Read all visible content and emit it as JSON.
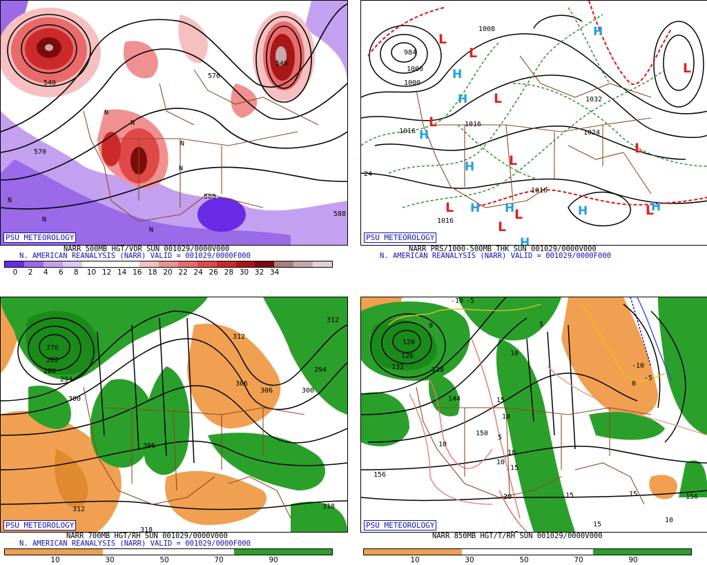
{
  "colors": {
    "vort_scale": [
      "#6a2be6",
      "#9a6ae8",
      "#c4a0f0",
      "#dcc8f8",
      "#ffffff",
      "#ffffff",
      "#ffffff",
      "#f6c0c0",
      "#f09090",
      "#e86a6a",
      "#e04848",
      "#cc2a2a",
      "#a81818",
      "#7a0c0c",
      "#a88080",
      "#c8a8a8",
      "#e6d0d0"
    ],
    "dry": "#f0a050",
    "moist": "#2aa02a",
    "border": "#8b4a20",
    "high": "#20a0e0",
    "low": "#e02020"
  },
  "panels": {
    "p1": {
      "psu": "PSU METEOROLOGY",
      "caption1": "NARR 500MB HGT/VOR SUN 001029/0000V000",
      "caption2": "N. AMERICAN REANALYSIS (NARR) VALID = 001029/0000F000",
      "colorbar_labels": [
        "0",
        "2",
        "4",
        "6",
        "8",
        "10",
        "12",
        "14",
        "16",
        "18",
        "20",
        "22",
        "24",
        "26",
        "28",
        "30",
        "32",
        "34"
      ],
      "contour_labels": [
        "540",
        "540",
        "576",
        "570",
        "588",
        "588",
        "N",
        "N",
        "N",
        "N",
        "N",
        "N",
        "N"
      ]
    },
    "p2": {
      "psu": "PSU METEOROLOGY",
      "caption1": "NARR PRS/1000-500MB THK SUN 001029/0000V000",
      "caption2": "N. AMERICAN REANALYSIS (NARR) VALID = 001029/0000F000",
      "contour_labels": [
        "1008",
        "1000",
        "1016",
        "1024",
        "1032",
        "1016",
        "24",
        "1016",
        "984",
        "1000",
        "1016"
      ],
      "highs": [
        "H",
        "H",
        "H",
        "H",
        "H",
        "H",
        "H",
        "H",
        "H",
        "H"
      ],
      "lows": [
        "L",
        "L",
        "L",
        "L",
        "L",
        "L",
        "L",
        "L",
        "L",
        "L",
        "L"
      ]
    },
    "p3": {
      "psu": "PSU METEOROLOGY",
      "caption1": "NARR 700MB HGT/RH SUN 001029/0000V000",
      "caption2": "N. AMERICAN REANALYSIS (NARR) VALID = 001029/0000F000",
      "colorbar_labels": [
        "10",
        "30",
        "50",
        "70",
        "90"
      ],
      "contour_labels": [
        "276",
        "282",
        "288",
        "294",
        "300",
        "306",
        "312",
        "318",
        "318",
        "312",
        "300",
        "294",
        "306",
        "312",
        "306"
      ]
    },
    "p4": {
      "psu": "PSU METEOROLOGY",
      "caption1": "NARR 850MB HGT/T/RH SUN 001029/0000V000",
      "caption2": "",
      "colorbar_labels": [
        "10",
        "30",
        "50",
        "70",
        "90"
      ],
      "contour_labels": [
        "120",
        "126",
        "132",
        "138",
        "144",
        "150",
        "156",
        "156",
        "-10",
        "-5",
        "5",
        "0",
        "10",
        "10",
        "10",
        "10",
        "15",
        "15",
        "15",
        "15",
        "15",
        "20",
        "-10",
        "-5",
        "0",
        "10",
        "5",
        "10",
        "15"
      ]
    }
  }
}
